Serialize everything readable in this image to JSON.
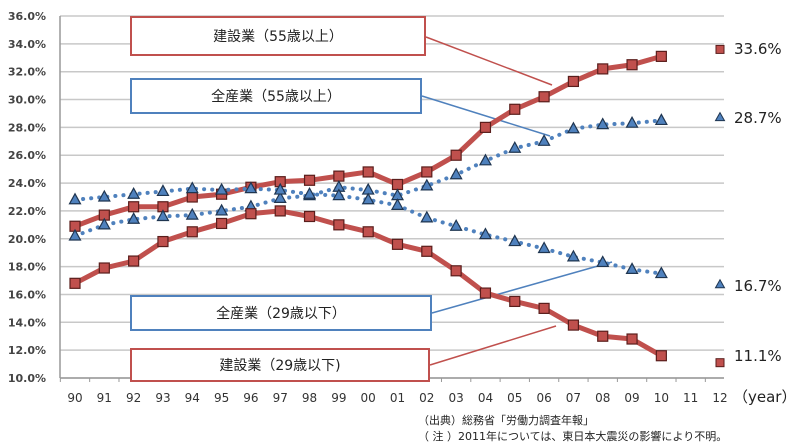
{
  "chart_data": {
    "type": "line",
    "title": "",
    "xlabel": "(year)",
    "ylabel": "",
    "ylim": [
      10.0,
      36.0
    ],
    "yticks": [
      "36.0%",
      "34.0%",
      "32.0%",
      "30.0%",
      "28.0%",
      "26.0%",
      "24.0%",
      "22.0%",
      "20.0%",
      "18.0%",
      "16.0%",
      "14.0%",
      "12.0%",
      "10.0%"
    ],
    "categories": [
      "90",
      "91",
      "92",
      "93",
      "94",
      "95",
      "96",
      "97",
      "98",
      "99",
      "00",
      "01",
      "02",
      "03",
      "04",
      "05",
      "06",
      "07",
      "08",
      "09",
      "10",
      "11",
      "12"
    ],
    "grid": true,
    "series": [
      {
        "name": "建設業（55歳以上）",
        "style": "solid-red-square",
        "color": "#c0504d",
        "values": [
          20.9,
          21.7,
          22.3,
          22.3,
          23.0,
          23.2,
          23.7,
          24.1,
          24.2,
          24.5,
          24.8,
          23.9,
          24.8,
          26.0,
          28.0,
          29.3,
          30.2,
          31.3,
          32.2,
          32.5,
          33.1,
          null,
          33.6
        ]
      },
      {
        "name": "全産業（55歳以上）",
        "style": "dotted-blue-triangle",
        "color": "#4f81bd",
        "values": [
          20.2,
          21.0,
          21.4,
          21.6,
          21.7,
          22.0,
          22.3,
          22.9,
          23.1,
          23.7,
          23.5,
          23.1,
          23.8,
          24.6,
          25.6,
          26.5,
          27.0,
          27.9,
          28.2,
          28.3,
          28.5,
          null,
          28.7
        ]
      },
      {
        "name": "全産業（29歳以下）",
        "style": "dotted-blue-triangle",
        "color": "#4f81bd",
        "values": [
          22.8,
          23.0,
          23.2,
          23.4,
          23.6,
          23.5,
          23.6,
          23.5,
          23.2,
          23.1,
          22.8,
          22.4,
          21.5,
          20.9,
          20.3,
          19.8,
          19.3,
          18.7,
          18.3,
          17.8,
          17.5,
          null,
          16.7
        ]
      },
      {
        "name": "建設業（29歳以下）",
        "style": "solid-red-square",
        "color": "#c0504d",
        "values": [
          16.8,
          17.9,
          18.4,
          19.8,
          20.5,
          21.1,
          21.8,
          22.0,
          21.6,
          21.0,
          20.5,
          19.6,
          19.1,
          17.7,
          16.1,
          15.5,
          15.0,
          13.8,
          13.0,
          12.8,
          11.6,
          null,
          11.1
        ]
      }
    ],
    "end_labels": [
      {
        "series": "建設業（55歳以上）",
        "text": "33.6%"
      },
      {
        "series": "全産業（55歳以上）",
        "text": "28.7%"
      },
      {
        "series": "全産業（29歳以下）",
        "text": "16.7%"
      },
      {
        "series": "建設業（29歳以下）",
        "text": "11.1%"
      }
    ],
    "annotations": [
      "建設業（55歳以上）",
      "全産業（55歳以上）",
      "全産業（29歳以下）",
      "建設業（29歳以下）"
    ]
  },
  "callouts": {
    "construction_55": "建設業（55歳以上）",
    "all_55": "全産業（55歳以上）",
    "all_29": "全産業（29歳以下）",
    "construction_29": "建設業（29歳以下)"
  },
  "end_labels": {
    "construction_55": "33.6%",
    "all_55": "28.7%",
    "all_29": "16.7%",
    "construction_29": "11.1%"
  },
  "axis": {
    "year_label": "（year）"
  },
  "notes": {
    "source": "（出典）総務省「労働力調査年報」",
    "note": "（ 注 ）2011年については、東日本大震災の影響により不明。"
  },
  "colors": {
    "red": "#c0504d",
    "blue": "#4f81bd",
    "grid": "#c8c8c8"
  }
}
